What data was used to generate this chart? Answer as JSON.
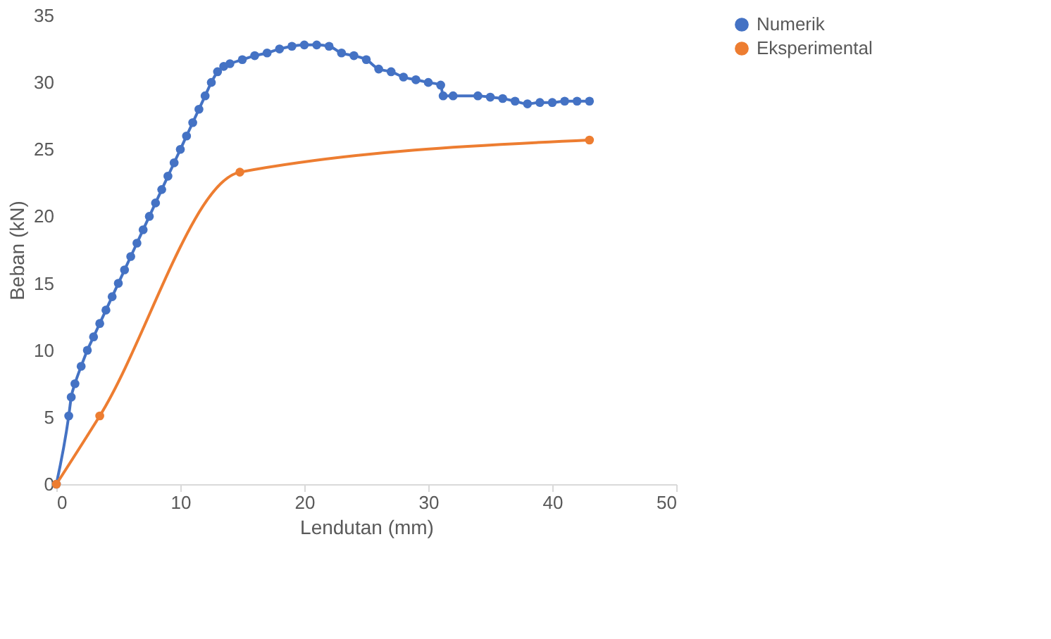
{
  "chart_data": {
    "type": "line",
    "xlabel": "Lendutan (mm)",
    "ylabel": "Beban (kN)",
    "xlim": [
      0,
      50
    ],
    "xticks": [
      0,
      10,
      20,
      30,
      40,
      50
    ],
    "ylim": [
      0,
      35
    ],
    "yticks": [
      0,
      5,
      10,
      15,
      20,
      25,
      30,
      35
    ],
    "grid": false,
    "legend": "right",
    "marker": "circle",
    "line_style": "solid",
    "series": [
      {
        "name": "Numerik",
        "color": "#4472c4",
        "x": [
          0,
          1,
          1.2,
          1.5,
          2,
          2.5,
          3,
          3.5,
          4,
          4.5,
          5,
          5.5,
          6,
          6.5,
          7,
          7.5,
          8,
          8.5,
          9,
          9.5,
          10,
          10.5,
          11,
          11.5,
          12,
          12.5,
          13,
          13.5,
          14,
          15,
          16,
          17,
          18,
          19,
          20,
          21,
          22,
          23,
          24,
          25,
          26,
          27,
          28,
          29,
          30,
          31,
          31.2,
          32,
          34,
          35,
          36,
          37,
          38,
          39,
          40,
          41,
          42,
          43
        ],
        "values": [
          0,
          5.1,
          6.5,
          7.5,
          8.8,
          10,
          11,
          12,
          13,
          14,
          15,
          16,
          17,
          18,
          19,
          20,
          21,
          22,
          23,
          24,
          25,
          26,
          27,
          28,
          29,
          30,
          30.8,
          31.2,
          31.4,
          31.7,
          32,
          32.2,
          32.5,
          32.7,
          32.8,
          32.8,
          32.7,
          32.2,
          32,
          31.7,
          31,
          30.8,
          30.4,
          30.2,
          30,
          29.8,
          29,
          29,
          29,
          28.9,
          28.8,
          28.6,
          28.4,
          28.5,
          28.5,
          28.6,
          28.6,
          28.6
        ]
      },
      {
        "name": "Eksperimental",
        "color": "#ed7d31",
        "x": [
          0,
          3.5,
          14.8,
          43
        ],
        "values": [
          0,
          5.1,
          23.3,
          25.7
        ]
      }
    ]
  }
}
